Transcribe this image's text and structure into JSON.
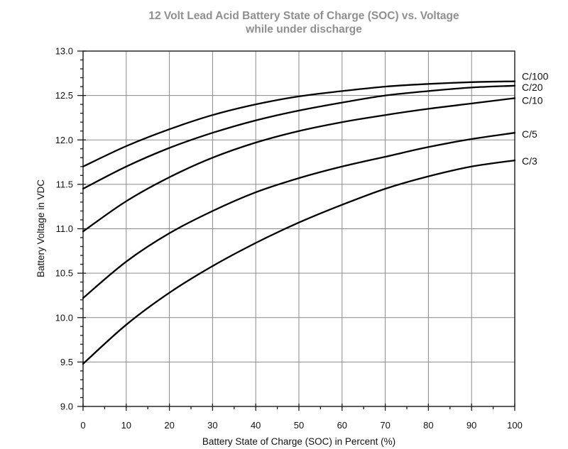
{
  "title": {
    "line1": "12 Volt Lead Acid Battery State of Charge (SOC) vs. Voltage",
    "line2": "while under discharge"
  },
  "chart_data": {
    "type": "line",
    "title": "12 Volt Lead Acid Battery State of Charge (SOC) vs. Voltage",
    "subtitle": "while under discharge",
    "xlabel": "Battery State of Charge (SOC) in Percent (%)",
    "ylabel": "Battery Voltage in VDC",
    "xlim": [
      0,
      100
    ],
    "ylim": [
      9.0,
      13.0
    ],
    "x_major_step": 10,
    "x_minor_step": 5,
    "y_major_step": 0.5,
    "y_minor_step": 0.1,
    "grid": true,
    "legend_position": "curve-end-labels-right-of-plot",
    "x_tick_labels": [
      "0",
      "10",
      "20",
      "30",
      "40",
      "50",
      "60",
      "70",
      "80",
      "90",
      "100"
    ],
    "y_tick_labels": [
      "9.0",
      "9.5",
      "10.0",
      "10.5",
      "11.0",
      "11.5",
      "12.0",
      "12.5",
      "13.0"
    ],
    "x": [
      0,
      10,
      20,
      30,
      40,
      50,
      60,
      70,
      80,
      90,
      100
    ],
    "series": [
      {
        "name": "C/100",
        "values": [
          11.7,
          11.93,
          12.12,
          12.28,
          12.4,
          12.49,
          12.55,
          12.6,
          12.63,
          12.65,
          12.66
        ]
      },
      {
        "name": "C/20",
        "values": [
          11.45,
          11.7,
          11.91,
          12.08,
          12.22,
          12.33,
          12.42,
          12.5,
          12.55,
          12.59,
          12.61
        ]
      },
      {
        "name": "C/10",
        "values": [
          10.97,
          11.31,
          11.58,
          11.8,
          11.97,
          12.1,
          12.2,
          12.28,
          12.35,
          12.41,
          12.47
        ]
      },
      {
        "name": "C/5",
        "values": [
          10.22,
          10.63,
          10.95,
          11.2,
          11.41,
          11.57,
          11.7,
          11.81,
          11.92,
          12.01,
          12.08
        ]
      },
      {
        "name": "C/3",
        "values": [
          9.48,
          9.92,
          10.28,
          10.58,
          10.84,
          11.07,
          11.27,
          11.45,
          11.59,
          11.7,
          11.77
        ]
      }
    ],
    "colors": {
      "curve": "#000000",
      "grid": "#8a8a8a",
      "frame": "#1a1a1a",
      "title_text": "#8f8f8f",
      "axis_text": "#111111",
      "background": "#ffffff"
    }
  }
}
